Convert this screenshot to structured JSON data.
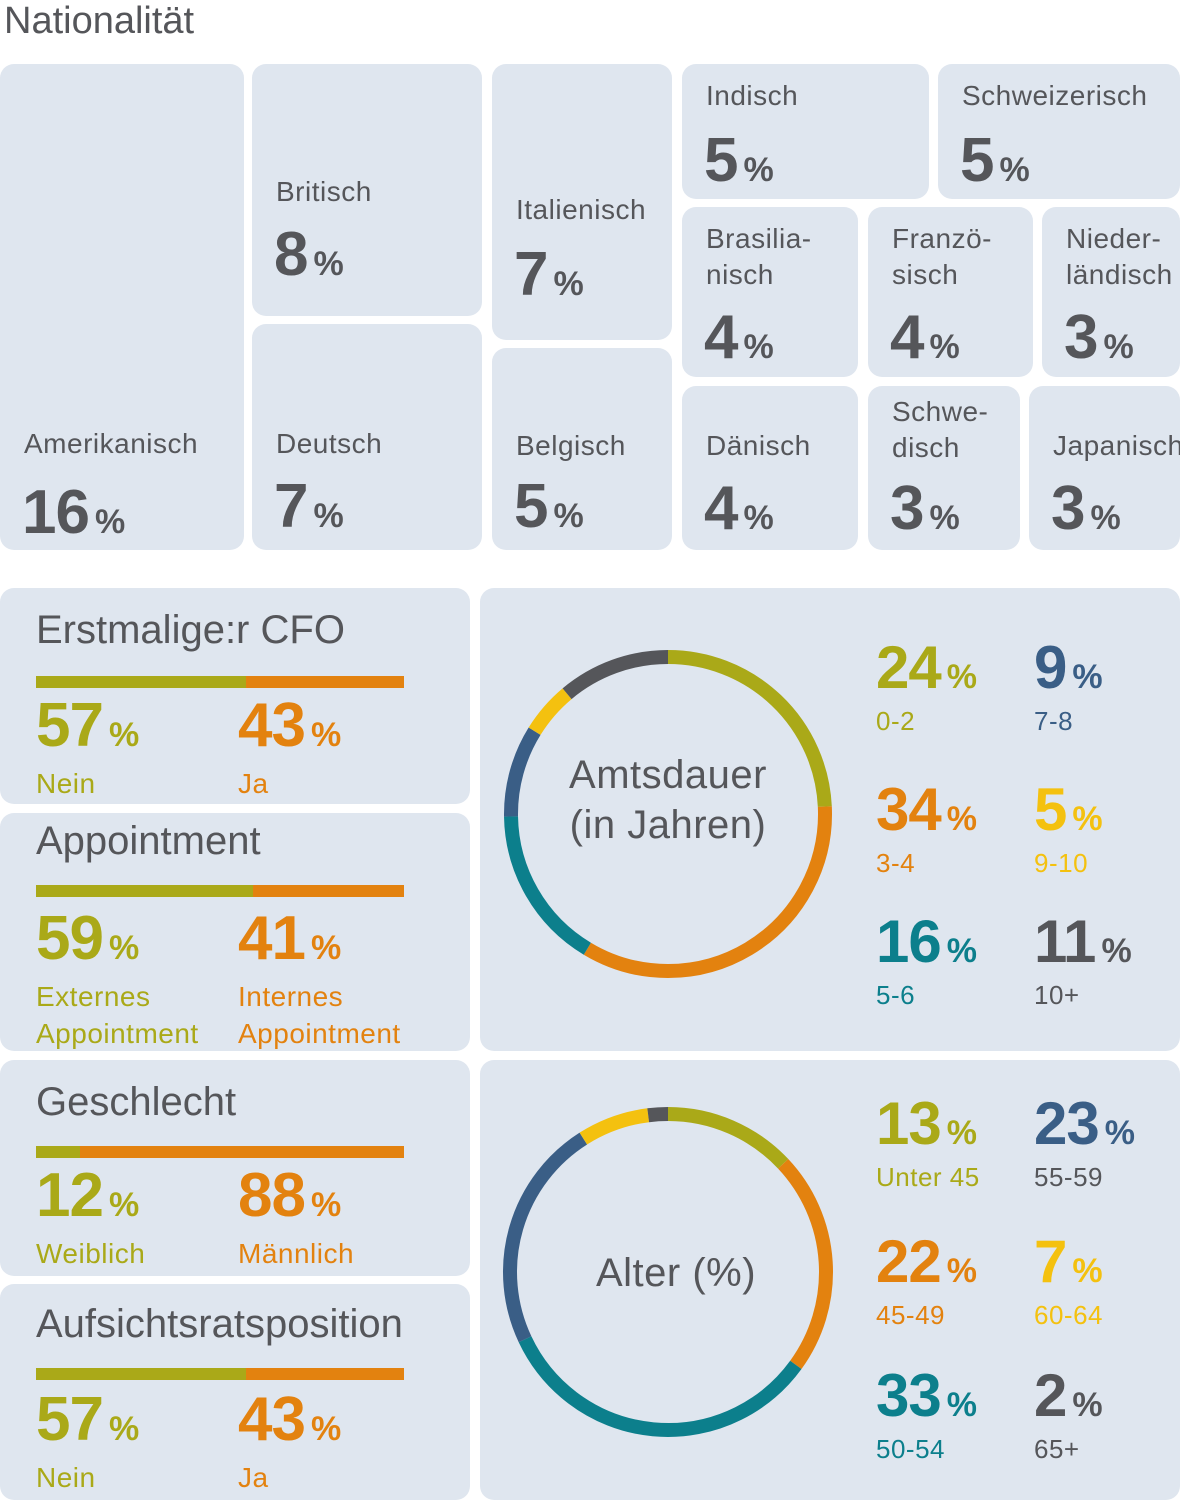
{
  "nationality": {
    "title": "Nationalität",
    "tiles": [
      {
        "label": "Amerikanisch",
        "value": "16",
        "unit": "%"
      },
      {
        "label": "Britisch",
        "value": "8",
        "unit": "%"
      },
      {
        "label": "Deutsch",
        "value": "7",
        "unit": "%"
      },
      {
        "label": "Italienisch",
        "value": "7",
        "unit": "%"
      },
      {
        "label": "Belgisch",
        "value": "5",
        "unit": "%"
      },
      {
        "label": "Indisch",
        "value": "5",
        "unit": "%"
      },
      {
        "label": "Schweizerisch",
        "value": "5",
        "unit": "%"
      },
      {
        "label": "Brasilia-\nnisch",
        "value": "4",
        "unit": "%"
      },
      {
        "label": "Franzö-\nsisch",
        "value": "4",
        "unit": "%"
      },
      {
        "label": "Nieder-\nländisch",
        "value": "3",
        "unit": "%"
      },
      {
        "label": "Dänisch",
        "value": "4",
        "unit": "%"
      },
      {
        "label": "Schwe-\ndisch",
        "value": "3",
        "unit": "%"
      },
      {
        "label": "Japanisch",
        "value": "3",
        "unit": "%"
      }
    ]
  },
  "colors": {
    "olive": "#aaa918",
    "orange": "#e3820f",
    "darkblue": "#3a5e86",
    "yellow": "#f4c10f",
    "darkgrey": "#55565a",
    "teal": "#0c7f8c",
    "tile": "#dfe6ef"
  },
  "panels": [
    {
      "title": "Erstmalige:r CFO",
      "left": {
        "value": "57",
        "unit": "%",
        "label": "Nein"
      },
      "right": {
        "value": "43",
        "unit": "%",
        "label": "Ja"
      },
      "share": 0.57
    },
    {
      "title": "Appointment",
      "left": {
        "value": "59",
        "unit": "%",
        "label": "Externes\nAppointment"
      },
      "right": {
        "value": "41",
        "unit": "%",
        "label": "Internes\nAppointment"
      },
      "share": 0.59
    },
    {
      "title": "Geschlecht",
      "left": {
        "value": "12",
        "unit": "%",
        "label": "Weiblich"
      },
      "right": {
        "value": "88",
        "unit": "%",
        "label": "Männlich"
      },
      "share": 0.12
    },
    {
      "title": "Aufsichtsratsposition",
      "left": {
        "value": "57",
        "unit": "%",
        "label": "Nein"
      },
      "right": {
        "value": "43",
        "unit": "%",
        "label": "Ja"
      },
      "share": 0.57
    }
  ],
  "chart_data": [
    {
      "type": "pie",
      "title": "Amtsdauer\n(in Jahren)",
      "categories": [
        "0-2",
        "3-4",
        "5-6",
        "7-8",
        "9-10",
        "10+"
      ],
      "values": [
        24,
        34,
        16,
        9,
        5,
        11
      ],
      "value_labels": [
        "24",
        "34",
        "16",
        "9",
        "5",
        "11"
      ],
      "unit": "%",
      "colors": [
        "#aaa918",
        "#e3820f",
        "#0c7f8c",
        "#3a5e86",
        "#f4c10f",
        "#55565a"
      ]
    },
    {
      "type": "pie",
      "title": "Alter (%)",
      "categories": [
        "Unter 45",
        "45-49",
        "50-54",
        "55-59",
        "60-64",
        "65+"
      ],
      "values": [
        13,
        22,
        33,
        23,
        7,
        2
      ],
      "value_labels": [
        "13",
        "22",
        "33",
        "23",
        "7",
        "2"
      ],
      "unit": "%",
      "colors": [
        "#aaa918",
        "#e3820f",
        "#0c7f8c",
        "#3a5e86",
        "#f4c10f",
        "#55565a"
      ]
    }
  ]
}
